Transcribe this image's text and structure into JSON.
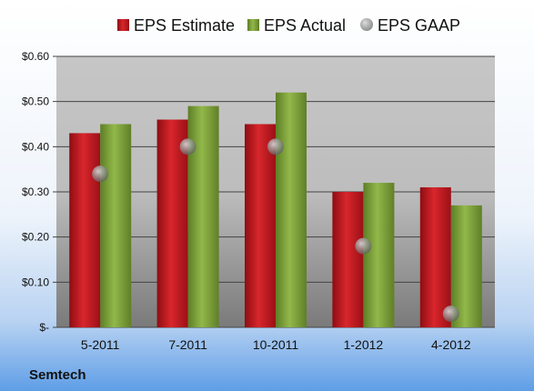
{
  "company": "Semtech",
  "colors": {
    "estimate": "#c0141c",
    "actual": "#7da03a",
    "gaap": "#9a9a9a",
    "grid": "#444444"
  },
  "chart_data": {
    "type": "bar",
    "title": "",
    "xlabel": "",
    "ylabel": "",
    "categories": [
      "5-2011",
      "7-2011",
      "10-2011",
      "1-2012",
      "4-2012"
    ],
    "ylim": [
      0,
      0.6
    ],
    "yticks": [
      0,
      0.1,
      0.2,
      0.3,
      0.4,
      0.5,
      0.6
    ],
    "ytick_labels": [
      "$-",
      "$0.10",
      "$0.20",
      "$0.30",
      "$0.40",
      "$0.50",
      "$0.60"
    ],
    "grid": true,
    "legend_position": "top",
    "series": [
      {
        "name": "EPS Estimate",
        "type": "bar",
        "values": [
          0.43,
          0.46,
          0.45,
          0.3,
          0.31
        ]
      },
      {
        "name": "EPS Actual",
        "type": "bar",
        "values": [
          0.45,
          0.49,
          0.52,
          0.32,
          0.27
        ]
      },
      {
        "name": "EPS GAAP",
        "type": "scatter",
        "values": [
          0.34,
          0.4,
          0.4,
          0.18,
          0.03
        ]
      }
    ]
  }
}
